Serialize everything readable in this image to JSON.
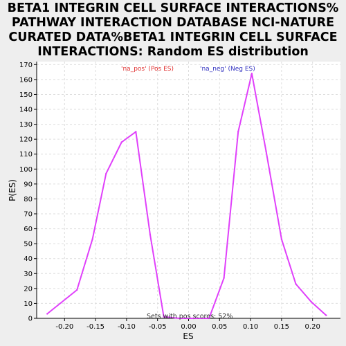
{
  "title": "BETA1 INTEGRIN CELL SURFACE INTERACTIONS% PATHWAY INTERACTION DATABASE NCI-NATURE CURATED DATA%BETA1 INTEGRIN CELL SURFACE INTERACTIONS: Random ES distribution",
  "colors": {
    "line": "#e040fb",
    "pos": "#e03030",
    "neg": "#3030c0",
    "grid": "#dddddd"
  },
  "chart_data": {
    "type": "line",
    "title": "BETA1 INTEGRIN CELL SURFACE INTERACTIONS% PATHWAY INTERACTION DATABASE NCI-NATURE CURATED DATA%BETA1 INTEGRIN CELL SURFACE INTERACTIONS: Random ES distribution",
    "xlabel": "ES",
    "ylabel": "P(ES)",
    "xlim": [
      -0.245,
      0.245
    ],
    "ylim": [
      0,
      172
    ],
    "xticks": [
      -0.2,
      -0.15,
      -0.1,
      -0.05,
      0.0,
      0.05,
      0.1,
      0.15,
      0.2
    ],
    "xtick_labels": [
      "-0.20",
      "-0.15",
      "-0.10",
      "-0.05",
      "0.00",
      "0.05",
      "0.10",
      "0.15",
      "0.20"
    ],
    "yticks": [
      0,
      10,
      20,
      30,
      40,
      50,
      60,
      70,
      80,
      90,
      100,
      110,
      120,
      130,
      140,
      150,
      160,
      170
    ],
    "ytick_labels": [
      "0",
      "10",
      "20",
      "30",
      "40",
      "50",
      "60",
      "70",
      "80",
      "90",
      "100",
      "110",
      "120",
      "130",
      "140",
      "150",
      "160",
      "170"
    ],
    "grid": true,
    "legend": {
      "placement": "top-center",
      "pos_label": "'na_pos' (Pos ES)",
      "neg_label": "'na_neg' (Neg ES)"
    },
    "annotation": "Sets with pos scores: 52%",
    "series": [
      {
        "x": [
          -0.228,
          -0.18,
          -0.155,
          -0.133,
          -0.108,
          -0.085,
          -0.062,
          -0.04,
          -0.015,
          0.008,
          0.033,
          0.057,
          0.08,
          0.102,
          0.125,
          0.15,
          0.173,
          0.198,
          0.222
        ],
        "y": [
          3,
          19,
          53,
          97,
          118,
          125,
          56,
          1,
          0,
          0,
          0,
          27,
          125,
          164,
          112,
          53,
          23,
          11,
          2
        ]
      }
    ]
  }
}
